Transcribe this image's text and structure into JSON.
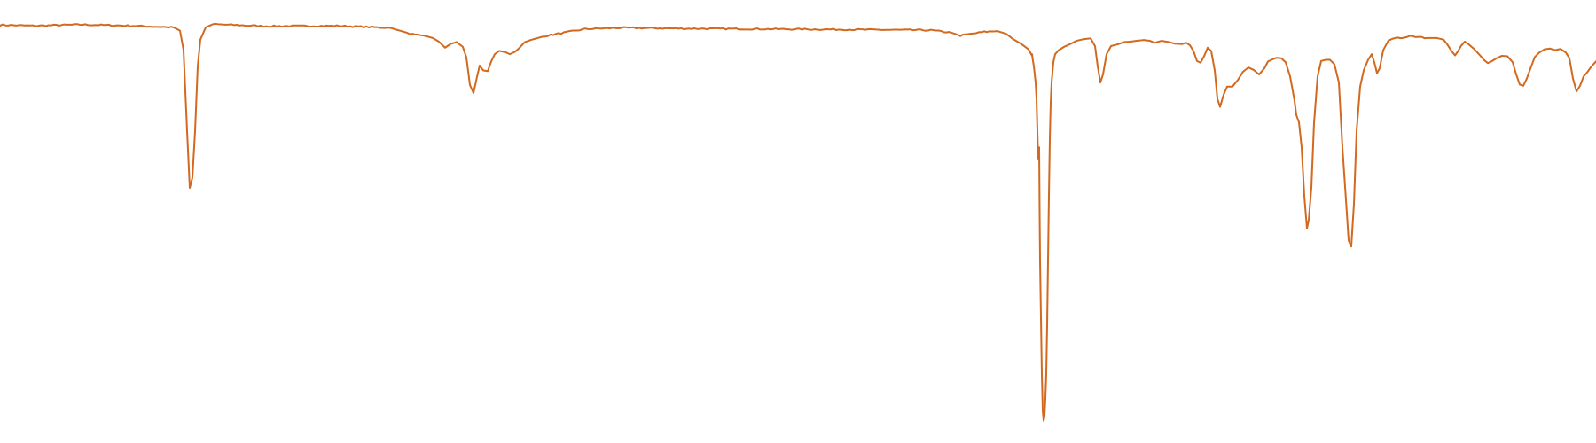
{
  "chart_data": {
    "type": "line",
    "title": "",
    "xlabel": "",
    "ylabel": "",
    "axes_visible": false,
    "grid": false,
    "xlim": [
      0,
      1800
    ],
    "ylim": [
      0,
      100
    ],
    "series": [
      {
        "color": "#d2691e",
        "points": [
          [
            0,
            98.2
          ],
          [
            40,
            98.0
          ],
          [
            90,
            98.3
          ],
          [
            150,
            98.0
          ],
          [
            196,
            97.6
          ],
          [
            203,
            96.8
          ],
          [
            207,
            92.0
          ],
          [
            211,
            72.0
          ],
          [
            214,
            58.0
          ],
          [
            217,
            60.5
          ],
          [
            220,
            72.0
          ],
          [
            223,
            88.0
          ],
          [
            226,
            94.6
          ],
          [
            232,
            97.6
          ],
          [
            240,
            98.4
          ],
          [
            300,
            97.9
          ],
          [
            380,
            98.0
          ],
          [
            440,
            97.5
          ],
          [
            462,
            96.1
          ],
          [
            468,
            95.8
          ],
          [
            478,
            95.6
          ],
          [
            488,
            95.0
          ],
          [
            495,
            94.1
          ],
          [
            502,
            92.6
          ],
          [
            508,
            93.5
          ],
          [
            515,
            94.0
          ],
          [
            522,
            92.8
          ],
          [
            526,
            90.2
          ],
          [
            530,
            83.4
          ],
          [
            534,
            81.4
          ],
          [
            538,
            85.4
          ],
          [
            541,
            88.2
          ],
          [
            545,
            87.0
          ],
          [
            550,
            86.8
          ],
          [
            554,
            89.2
          ],
          [
            558,
            91.0
          ],
          [
            563,
            91.8
          ],
          [
            570,
            91.5
          ],
          [
            575,
            91.0
          ],
          [
            581,
            91.6
          ],
          [
            586,
            92.6
          ],
          [
            592,
            94.0
          ],
          [
            600,
            94.6
          ],
          [
            615,
            95.5
          ],
          [
            660,
            97.2
          ],
          [
            700,
            97.5
          ],
          [
            780,
            97.3
          ],
          [
            860,
            97.2
          ],
          [
            940,
            97.1
          ],
          [
            1000,
            97.0
          ],
          [
            1050,
            96.9
          ],
          [
            1073,
            96.3
          ],
          [
            1083,
            95.6
          ],
          [
            1095,
            96.0
          ],
          [
            1110,
            96.5
          ],
          [
            1125,
            96.7
          ],
          [
            1135,
            96.0
          ],
          [
            1142,
            94.8
          ],
          [
            1152,
            93.5
          ],
          [
            1160,
            92.2
          ],
          [
            1164,
            90.6
          ],
          [
            1168,
            84.0
          ],
          [
            1172,
            68.0
          ],
          [
            1164.5,
            90.0
          ],
          [
            1166,
            88.0
          ],
          [
            1169,
            80.0
          ],
          [
            1171,
            65.0
          ],
          [
            1167,
            86.0
          ],
          [
            1173,
            40.0
          ],
          [
            1164,
            91.0
          ],
          [
            1168.5,
            82.0
          ],
          [
            1170,
            72.0
          ],
          [
            1175,
            12.0
          ],
          [
            1170.5,
            68.0
          ],
          [
            1176,
            3.0
          ],
          [
            1172.5,
            52.0
          ],
          [
            1177,
            0.5
          ],
          [
            1178,
            1.5
          ],
          [
            1179,
            6.0
          ],
          [
            1180,
            12.0
          ],
          [
            1174,
            26.0
          ],
          [
            1181,
            24.0
          ],
          [
            1182,
            40.0
          ],
          [
            1183,
            56.0
          ],
          [
            1184,
            70.0
          ],
          [
            1185,
            79.0
          ],
          [
            1186,
            84.0
          ],
          [
            1188,
            89.0
          ],
          [
            1190,
            91.0
          ],
          [
            1194,
            92.0
          ],
          [
            1200,
            92.8
          ],
          [
            1208,
            93.6
          ],
          [
            1214,
            94.3
          ],
          [
            1222,
            94.7
          ],
          [
            1230,
            94.9
          ],
          [
            1235,
            93.0
          ],
          [
            1238,
            88.0
          ],
          [
            1241,
            84.0
          ],
          [
            1244,
            86.0
          ],
          [
            1248,
            91.0
          ],
          [
            1253,
            93.0
          ],
          [
            1260,
            93.4
          ],
          [
            1268,
            94.0
          ],
          [
            1275,
            94.1
          ],
          [
            1282,
            94.3
          ],
          [
            1290,
            94.5
          ],
          [
            1297,
            94.3
          ],
          [
            1302,
            93.8
          ],
          [
            1310,
            94.3
          ],
          [
            1318,
            94.0
          ],
          [
            1325,
            93.6
          ],
          [
            1333,
            93.5
          ],
          [
            1338,
            93.8
          ],
          [
            1342,
            93.2
          ],
          [
            1346,
            91.8
          ],
          [
            1350,
            89.3
          ],
          [
            1354,
            88.9
          ],
          [
            1358,
            90.5
          ],
          [
            1362,
            92.6
          ],
          [
            1366,
            91.8
          ],
          [
            1370,
            87.0
          ],
          [
            1373,
            80.0
          ],
          [
            1376,
            78.0
          ],
          [
            1380,
            81.0
          ],
          [
            1384,
            83.0
          ],
          [
            1390,
            83.0
          ],
          [
            1396,
            84.6
          ],
          [
            1402,
            86.7
          ],
          [
            1408,
            87.7
          ],
          [
            1414,
            87.1
          ],
          [
            1420,
            86.0
          ],
          [
            1426,
            87.5
          ],
          [
            1430,
            89.2
          ],
          [
            1436,
            89.8
          ],
          [
            1440,
            90.1
          ],
          [
            1445,
            90.0
          ],
          [
            1450,
            89.0
          ],
          [
            1455,
            85.5
          ],
          [
            1460,
            79.5
          ],
          [
            1462,
            76.0
          ],
          [
            1465,
            74.2
          ],
          [
            1468,
            68.0
          ],
          [
            1471,
            56.0
          ],
          [
            1474,
            48.0
          ],
          [
            1476,
            50.0
          ],
          [
            1479,
            58.0
          ],
          [
            1482,
            74.0
          ],
          [
            1486,
            85.5
          ],
          [
            1490,
            89.3
          ],
          [
            1495,
            89.6
          ],
          [
            1500,
            89.6
          ],
          [
            1505,
            88.5
          ],
          [
            1510,
            84.0
          ],
          [
            1514,
            68.0
          ],
          [
            1518,
            55.0
          ],
          [
            1521,
            45.0
          ],
          [
            1524,
            43.5
          ],
          [
            1527,
            54.0
          ],
          [
            1530,
            72.0
          ],
          [
            1534,
            83.0
          ],
          [
            1538,
            87.0
          ],
          [
            1543,
            89.6
          ],
          [
            1547,
            91.0
          ],
          [
            1550,
            89.0
          ],
          [
            1553,
            86.3
          ],
          [
            1556,
            87.5
          ],
          [
            1560,
            92.0
          ],
          [
            1566,
            94.4
          ],
          [
            1574,
            95.1
          ],
          [
            1582,
            95.0
          ],
          [
            1590,
            95.4
          ],
          [
            1600,
            95.2
          ],
          [
            1610,
            95.0
          ],
          [
            1620,
            95.0
          ],
          [
            1628,
            94.6
          ],
          [
            1632,
            93.5
          ],
          [
            1637,
            91.8
          ],
          [
            1641,
            90.7
          ],
          [
            1644,
            91.6
          ],
          [
            1648,
            93.1
          ],
          [
            1652,
            94.1
          ],
          [
            1656,
            93.5
          ],
          [
            1662,
            92.4
          ],
          [
            1668,
            91.0
          ],
          [
            1674,
            89.5
          ],
          [
            1678,
            88.8
          ],
          [
            1682,
            89.2
          ],
          [
            1688,
            90.0
          ],
          [
            1694,
            90.6
          ],
          [
            1700,
            90.5
          ],
          [
            1706,
            89.0
          ],
          [
            1710,
            86.0
          ],
          [
            1714,
            83.5
          ],
          [
            1718,
            83.2
          ],
          [
            1722,
            85.0
          ],
          [
            1727,
            88.0
          ],
          [
            1731,
            90.3
          ],
          [
            1736,
            91.4
          ],
          [
            1742,
            92.2
          ],
          [
            1748,
            92.4
          ],
          [
            1754,
            92.0
          ],
          [
            1760,
            92.3
          ],
          [
            1766,
            91.4
          ],
          [
            1770,
            90.0
          ],
          [
            1774,
            85.0
          ],
          [
            1778,
            81.8
          ],
          [
            1782,
            83.2
          ],
          [
            1786,
            85.5
          ],
          [
            1790,
            86.5
          ],
          [
            1795,
            88.0
          ],
          [
            1800,
            89.2
          ]
        ]
      }
    ]
  }
}
